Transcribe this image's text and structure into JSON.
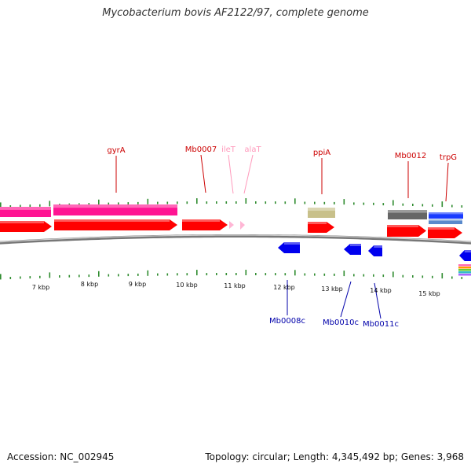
{
  "title": "Mycobacterium bovis AF2122/97, complete genome",
  "footer": {
    "accession": "Accession: NC_002945",
    "topology": "Topology: circular; Length: 4,345,492 bp; Genes: 3,968"
  },
  "colors": {
    "ring": "#8a8a8a",
    "ticks": "#2e8b2e",
    "forward_gene": "#ff0000",
    "reverse_gene": "#0000ee",
    "rRNA": "#ff1493",
    "tRNA": "#ffb6d5",
    "misc": "#c8c08a",
    "dark": "#666666",
    "blue": "#1a3cff",
    "label_forward": "#cc0000",
    "label_reverse": "#0000aa",
    "label_trna": "#ff99bb"
  },
  "scale": {
    "unit": "kbp",
    "labels": [
      "7 kbp",
      "8 kbp",
      "9 kbp",
      "10 kbp",
      "11 kbp",
      "12 kbp",
      "13 kbp",
      "14 kbp",
      "15 kbp"
    ]
  },
  "feature_labels": {
    "top": [
      {
        "text": "gyrA",
        "color": "#cc0000"
      },
      {
        "text": "Mb0007",
        "color": "#cc0000"
      },
      {
        "text": "ileT",
        "color": "#ff99bb"
      },
      {
        "text": "alaT",
        "color": "#ff99bb"
      },
      {
        "text": "ppiA",
        "color": "#cc0000"
      },
      {
        "text": "Mb0012",
        "color": "#cc0000"
      },
      {
        "text": "trpG",
        "color": "#cc0000"
      }
    ],
    "bottom": [
      {
        "text": "Mb0008c",
        "color": "#0000aa"
      },
      {
        "text": "Mb0010c",
        "color": "#0000aa"
      },
      {
        "text": "Mb0011c",
        "color": "#0000aa"
      }
    ]
  }
}
